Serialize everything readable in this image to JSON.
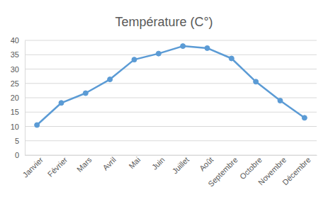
{
  "chart_data": {
    "type": "line",
    "title": "Température (C°)",
    "categories": [
      "Janvier",
      "Février",
      "Mars",
      "Avril",
      "Mai",
      "Juin",
      "Juillet",
      "Août",
      "Septembre",
      "Octobre",
      "Novembre",
      "Décembre"
    ],
    "values": [
      10.5,
      18.2,
      21.6,
      26.4,
      33.3,
      35.4,
      38,
      37.3,
      33.7,
      25.6,
      19,
      13
    ],
    "color": "#5b9bd5",
    "marker": "circle",
    "line_style": "solid",
    "ylim": [
      0,
      40
    ],
    "yticks": [
      0,
      5,
      10,
      15,
      20,
      25,
      30,
      35,
      40
    ],
    "grid": true
  }
}
